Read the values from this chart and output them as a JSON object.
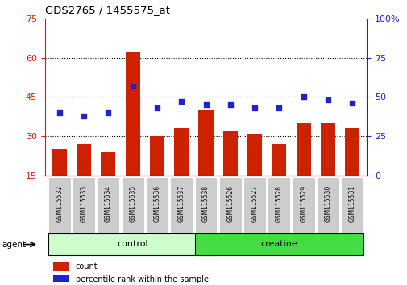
{
  "title": "GDS2765 / 1455575_at",
  "categories": [
    "GSM115532",
    "GSM115533",
    "GSM115534",
    "GSM115535",
    "GSM115536",
    "GSM115537",
    "GSM115538",
    "GSM115526",
    "GSM115527",
    "GSM115528",
    "GSM115529",
    "GSM115530",
    "GSM115531"
  ],
  "counts": [
    25,
    27,
    24,
    62,
    30,
    33,
    40,
    32,
    30.5,
    27,
    35,
    35,
    33
  ],
  "percentiles": [
    40,
    38,
    40,
    57,
    43,
    47,
    45,
    45,
    43,
    43,
    50,
    48,
    46
  ],
  "bar_color": "#cc2200",
  "dot_color": "#2222cc",
  "left_ylim": [
    15,
    75
  ],
  "right_ylim": [
    0,
    100
  ],
  "left_yticks": [
    15,
    30,
    45,
    60,
    75
  ],
  "right_yticks": [
    0,
    25,
    50,
    75,
    100
  ],
  "right_yticklabels": [
    "0",
    "25",
    "50",
    "75",
    "100%"
  ],
  "groups": [
    {
      "label": "control",
      "start": 0,
      "end": 6,
      "color": "#ccffcc"
    },
    {
      "label": "creatine",
      "start": 6,
      "end": 12,
      "color": "#44dd44"
    }
  ],
  "agent_label": "agent",
  "legend_items": [
    {
      "label": "count",
      "color": "#cc2200"
    },
    {
      "label": "percentile rank within the sample",
      "color": "#2222cc"
    }
  ],
  "background_color": "#ffffff",
  "tick_label_bg": "#cccccc",
  "border_color": "#888888"
}
